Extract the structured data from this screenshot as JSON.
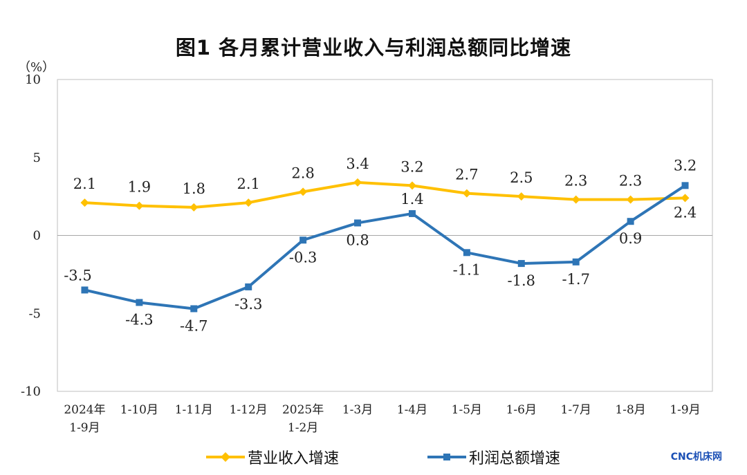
{
  "chart_data": {
    "type": "line",
    "title": "图1  各月累计营业收入与利润总额同比增速",
    "unit_label": "（%）",
    "categories": [
      [
        "2024年",
        "1-9月"
      ],
      [
        "1-10月"
      ],
      [
        "1-11月"
      ],
      [
        "1-12月"
      ],
      [
        "2025年",
        "1-2月"
      ],
      [
        "1-3月"
      ],
      [
        "1-4月"
      ],
      [
        "1-5月"
      ],
      [
        "1-6月"
      ],
      [
        "1-7月"
      ],
      [
        "1-8月"
      ],
      [
        "1-9月"
      ]
    ],
    "yticks": [
      "10",
      "5",
      "0",
      "-5",
      "-10"
    ],
    "ylim": [
      -10,
      10
    ],
    "grid": false,
    "legend_position": "bottom",
    "series": [
      {
        "name": "营业收入增速",
        "color": "#FFC000",
        "marker": "diamond",
        "values": [
          2.1,
          1.9,
          1.8,
          2.1,
          2.8,
          3.4,
          3.2,
          2.7,
          2.5,
          2.3,
          2.3,
          2.4
        ],
        "labels": [
          "2.1",
          "1.9",
          "1.8",
          "2.1",
          "2.8",
          "3.4",
          "3.2",
          "2.7",
          "2.5",
          "2.3",
          "2.3",
          "2.4"
        ]
      },
      {
        "name": "利润总额增速",
        "color": "#2E75B6",
        "marker": "square",
        "values": [
          -3.5,
          -4.3,
          -4.7,
          -3.3,
          -0.3,
          0.8,
          1.4,
          -1.1,
          -1.8,
          -1.7,
          0.9,
          3.2
        ],
        "labels": [
          "-3.5",
          "-4.3",
          "-4.7",
          "-3.3",
          "-0.3",
          "0.8",
          "1.4",
          "-1.1",
          "-1.8",
          "-1.7",
          "0.9",
          "3.2"
        ]
      }
    ]
  },
  "watermark": "CNC机床网"
}
